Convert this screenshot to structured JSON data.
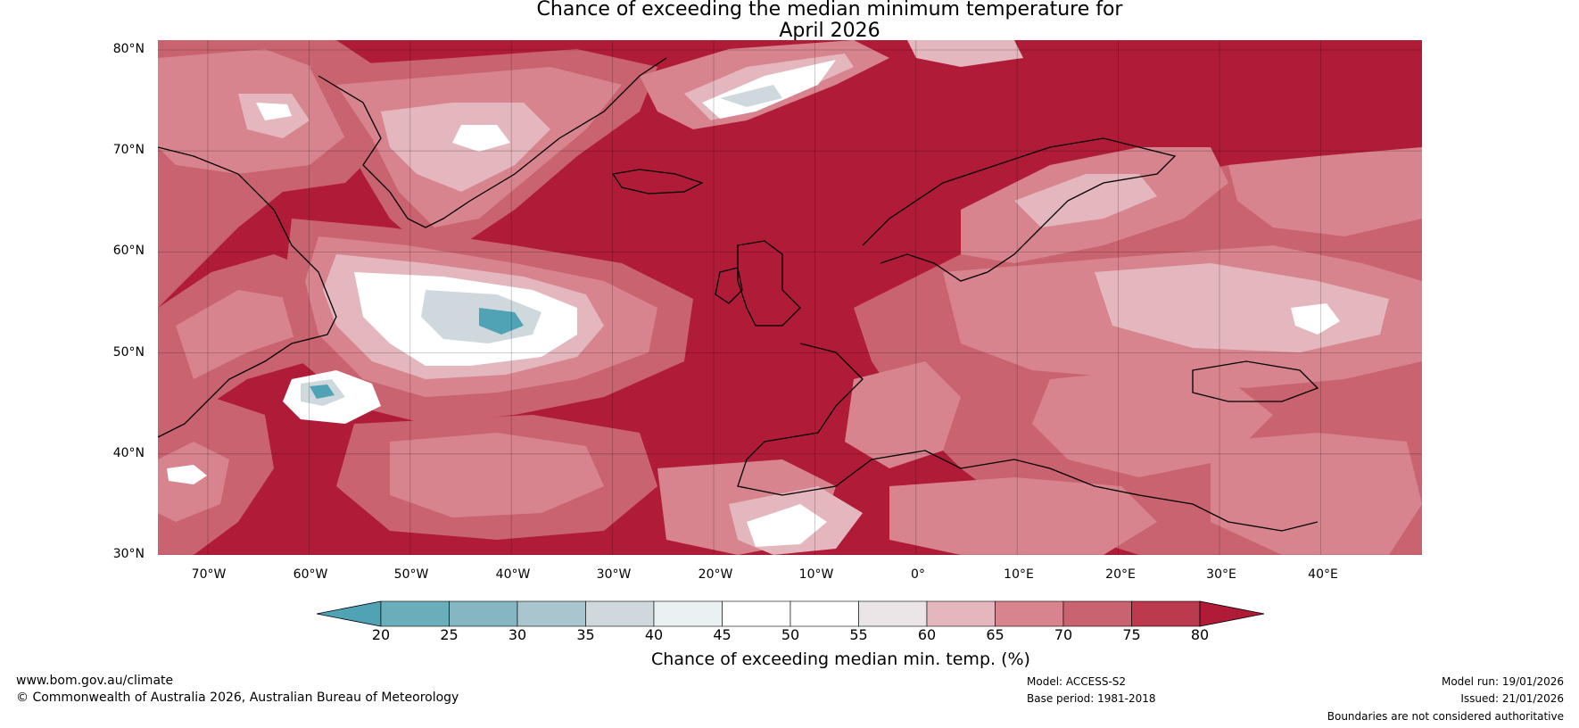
{
  "title": {
    "line1": "Chance of exceeding the median minimum temperature for",
    "line2": "April 2026"
  },
  "map": {
    "region": "North Atlantic and Europe",
    "lat_labels": [
      "80°N",
      "70°N",
      "60°N",
      "50°N",
      "40°N",
      "30°N"
    ],
    "lon_labels": [
      "70°W",
      "60°W",
      "50°W",
      "40°W",
      "30°W",
      "20°W",
      "10°W",
      "0°",
      "10°E",
      "20°E",
      "30°E",
      "40°E"
    ]
  },
  "colorbar": {
    "ticks": [
      "20",
      "25",
      "30",
      "35",
      "40",
      "45",
      "50",
      "55",
      "60",
      "65",
      "70",
      "75",
      "80"
    ],
    "colors": [
      "#4fa3b5",
      "#6aadbb",
      "#87b6c3",
      "#a9c6cf",
      "#cfd9dd",
      "#eaf1f3",
      "#ffffff",
      "#ffffff",
      "#ebe5e7",
      "#e3b7bd",
      "#d7848f",
      "#c9636f",
      "#bc3a4e",
      "#b01c38"
    ],
    "caption": "Chance of exceeding median min. temp. (%)"
  },
  "footer": {
    "url": "www.bom.gov.au/climate",
    "copyright": "© Commonwealth of Australia 2026, Australian Bureau of Meteorology",
    "model": "Model: ACCESS-S2",
    "base_period": "Base period: 1981-2018",
    "model_run": "Model run: 19/01/2026",
    "issued": "Issued: 21/01/2026",
    "disclaimer": "Boundaries are not considered authoritative"
  },
  "palette": {
    "deep_red": "#b01c38",
    "red": "#c9636f",
    "pink": "#d7848f",
    "light_pink": "#e3b7bd",
    "white": "#ffffff",
    "pale_blue": "#cfd9dd",
    "teal": "#4fa3b5",
    "coast": "#000000",
    "border": "#808080"
  }
}
